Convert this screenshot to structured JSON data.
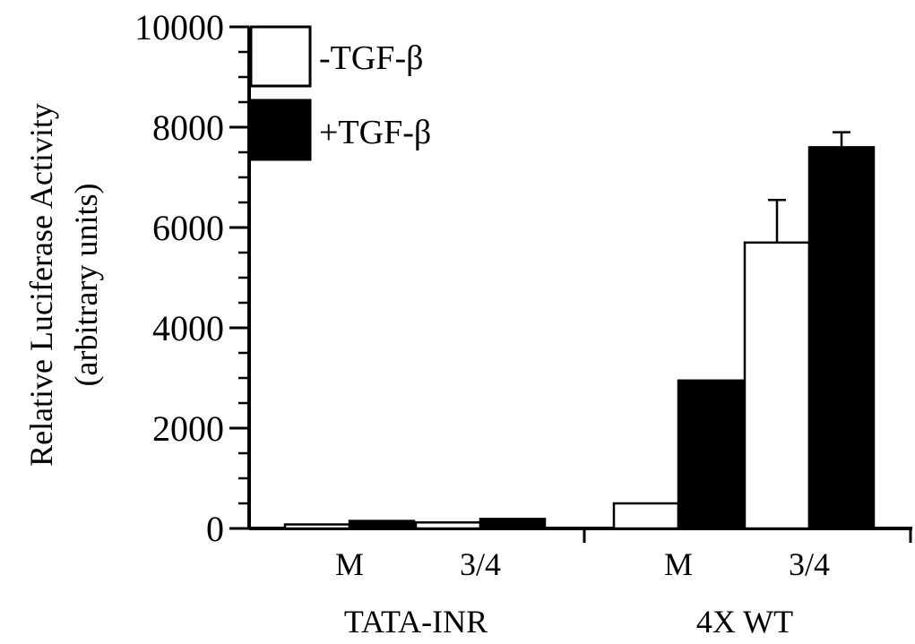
{
  "chart_data": {
    "type": "bar",
    "ylabel": "Relative Luciferase Activity",
    "ylabel_units": "(arbitrary units)",
    "ylim": [
      0,
      10000
    ],
    "yticks": [
      "0",
      "2000",
      "4000",
      "6000",
      "8000",
      "10000"
    ],
    "legend_placement": "top-left",
    "groups": [
      {
        "label": "TATA-INR",
        "categories": [
          "M",
          "3/4"
        ]
      },
      {
        "label": "4X WT",
        "categories": [
          "M",
          "3/4"
        ]
      }
    ],
    "series": [
      {
        "name": "-TGF-β",
        "color": "#ffffff",
        "values": [
          80,
          120,
          500,
          5700
        ],
        "errors": [
          0,
          0,
          0,
          850
        ]
      },
      {
        "name": "+TGF-β",
        "color": "#000000",
        "values": [
          150,
          190,
          2950,
          7600
        ],
        "errors": [
          0,
          0,
          0,
          300
        ]
      }
    ]
  }
}
